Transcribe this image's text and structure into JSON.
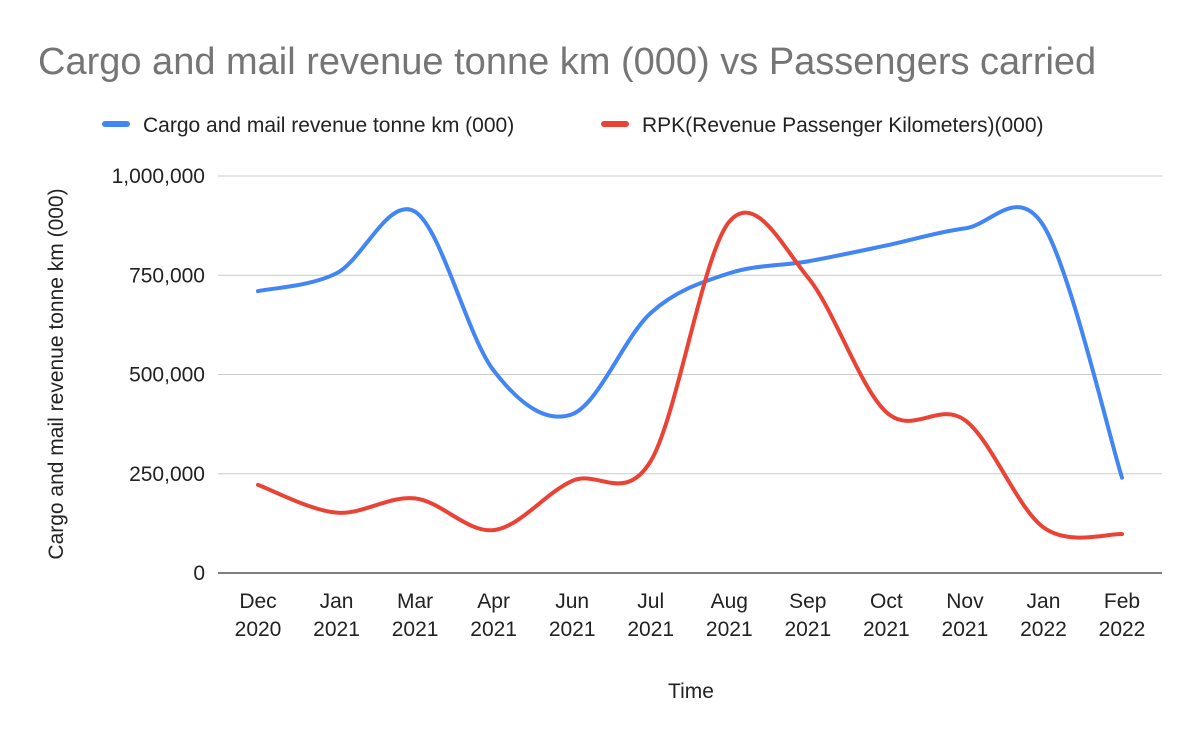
{
  "chart_data": {
    "type": "line",
    "title": "Cargo and mail revenue tonne km (000) vs Passengers carried",
    "xlabel": "Time",
    "ylabel": "Cargo and mail revenue tonne km (000)",
    "ylim": [
      0,
      1000000
    ],
    "yticks": [
      {
        "value": 0,
        "label": "0"
      },
      {
        "value": 250000,
        "label": "250,000"
      },
      {
        "value": 500000,
        "label": "500,000"
      },
      {
        "value": 750000,
        "label": "750,000"
      },
      {
        "value": 1000000,
        "label": "1,000,000"
      }
    ],
    "categories": [
      [
        "Dec",
        "2020"
      ],
      [
        "Jan",
        "2021"
      ],
      [
        "Mar",
        "2021"
      ],
      [
        "Apr",
        "2021"
      ],
      [
        "Jun",
        "2021"
      ],
      [
        "Jul",
        "2021"
      ],
      [
        "Aug",
        "2021"
      ],
      [
        "Sep",
        "2021"
      ],
      [
        "Oct",
        "2021"
      ],
      [
        "Nov",
        "2021"
      ],
      [
        "Jan",
        "2022"
      ],
      [
        "Feb",
        "2022"
      ]
    ],
    "grid": true,
    "legend_position": "top",
    "series": [
      {
        "name": "Cargo and mail revenue tonne km (000)",
        "color": "#4285f4",
        "values": [
          710000,
          755000,
          910000,
          510000,
          400000,
          655000,
          755000,
          785000,
          825000,
          868000,
          875000,
          240000
        ]
      },
      {
        "name": "RPK(Revenue Passenger Kilometers)(000)",
        "color": "#ea4335",
        "values": [
          222000,
          152000,
          188000,
          108000,
          232000,
          282000,
          885000,
          745000,
          405000,
          385000,
          115000,
          98000
        ]
      }
    ]
  }
}
